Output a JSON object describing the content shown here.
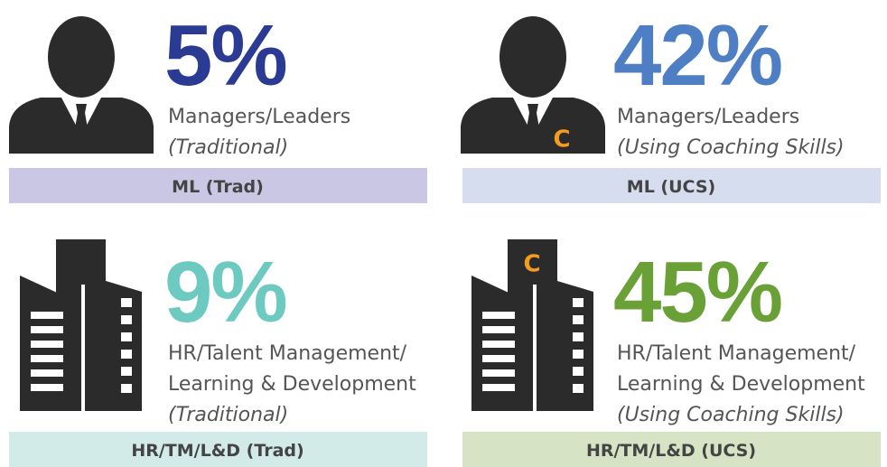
{
  "panels": [
    {
      "icon": "person",
      "coach": false,
      "stat": "5%",
      "color": "#2b3a92",
      "lines": [
        "Managers/Leaders"
      ],
      "note": "(Traditional)",
      "band": "ML (Trad)",
      "band_color": "#c9c7e3"
    },
    {
      "icon": "person",
      "coach": true,
      "stat": "42%",
      "color": "#4e7ec4",
      "lines": [
        "Managers/Leaders"
      ],
      "note": "(Using Coaching Skills)",
      "band": "ML (UCS)",
      "band_color": "#d6ddef"
    },
    {
      "icon": "building",
      "coach": false,
      "stat": "9%",
      "color": "#6ccac1",
      "lines": [
        "HR/Talent Management/",
        "Learning & Development"
      ],
      "note": "(Traditional)",
      "band": "HR/TM/L&D (Trad)",
      "band_color": "#d3ebe8"
    },
    {
      "icon": "building",
      "coach": true,
      "stat": "45%",
      "color": "#6aa137",
      "lines": [
        "HR/Talent Management/",
        "Learning & Development"
      ],
      "note": "(Using Coaching Skills)",
      "band": "HR/TM/L&D (UCS)",
      "band_color": "#d6e3c4"
    }
  ],
  "coach_letter": "C"
}
